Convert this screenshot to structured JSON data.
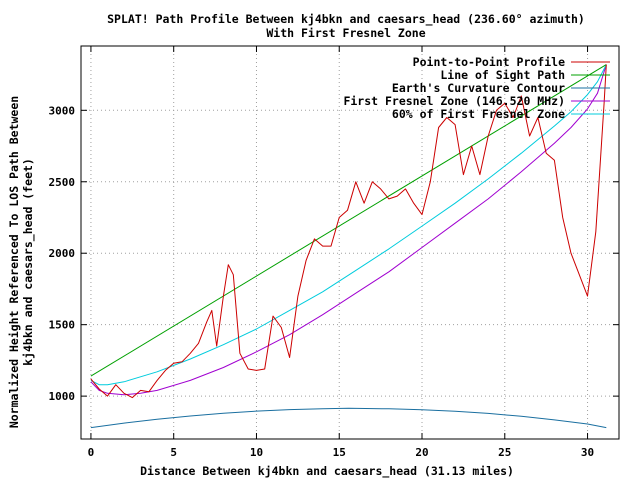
{
  "chart_data": {
    "type": "line",
    "title": "SPLAT! Path Profile Between kj4bkn and caesars_head (236.60° azimuth)",
    "subtitle": "With First Fresnel Zone",
    "xlabel": "Distance Between kj4bkn and caesars_head (31.13 miles)",
    "ylabel_line1": "Normalized Height Referenced To LOS Path Between",
    "ylabel_line2": "kj4bkn and caesars_head (feet)",
    "xlim": [
      -0.6,
      31.9
    ],
    "ylim": [
      700,
      3450
    ],
    "x_ticks": [
      0,
      5,
      10,
      15,
      20,
      25,
      30
    ],
    "y_ticks": [
      1000,
      1500,
      2000,
      2500,
      3000
    ],
    "grid": true,
    "legend_position": "top-right",
    "colors": {
      "profile": "#cc0000",
      "los": "#00a000",
      "curvature": "#1a6fa0",
      "fresnel": "#a000d0",
      "fresnel60": "#00ccdd"
    },
    "series": [
      {
        "name": "Point-to-Point Profile",
        "key": "profile",
        "x": [
          0,
          0.5,
          1,
          1.5,
          2,
          2.5,
          3,
          3.5,
          4,
          4.5,
          5,
          5.5,
          6,
          6.5,
          7,
          7.3,
          7.6,
          8,
          8.3,
          8.6,
          9,
          9.5,
          10,
          10.5,
          11,
          11.5,
          12,
          12.5,
          13,
          13.5,
          14,
          14.5,
          15,
          15.5,
          16,
          16.5,
          17,
          17.5,
          18,
          18.5,
          19,
          19.5,
          20,
          20.5,
          21,
          21.5,
          22,
          22.5,
          23,
          23.5,
          24,
          24.5,
          25,
          25.5,
          26,
          26.5,
          27,
          27.5,
          28,
          28.5,
          29,
          29.5,
          30,
          30.5,
          31,
          31.13
        ],
        "y": [
          1120,
          1050,
          1000,
          1080,
          1020,
          990,
          1040,
          1030,
          1110,
          1180,
          1230,
          1240,
          1300,
          1370,
          1520,
          1600,
          1350,
          1700,
          1920,
          1850,
          1300,
          1190,
          1180,
          1190,
          1560,
          1480,
          1270,
          1700,
          1950,
          2100,
          2050,
          2050,
          2250,
          2300,
          2500,
          2350,
          2500,
          2450,
          2380,
          2400,
          2450,
          2350,
          2270,
          2500,
          2880,
          2950,
          2900,
          2550,
          2750,
          2550,
          2820,
          3000,
          3050,
          2950,
          3100,
          2820,
          2950,
          2700,
          2650,
          2250,
          2000,
          1850,
          1700,
          2150,
          3050,
          3320
        ]
      },
      {
        "name": "Line of Sight Path",
        "key": "los",
        "x": [
          0,
          31.13
        ],
        "y": [
          1140,
          3320
        ]
      },
      {
        "name": "Earth's Curvature Contour",
        "key": "curvature",
        "x": [
          0,
          2,
          4,
          6,
          8,
          10,
          12,
          14,
          15.565,
          18,
          20,
          22,
          24,
          26,
          28,
          30,
          31.13
        ],
        "y": [
          780,
          811,
          838,
          861,
          880,
          895,
          906,
          912,
          915,
          911,
          905,
          894,
          879,
          859,
          834,
          805,
          780
        ]
      },
      {
        "name": "First Fresnel Zone (146.520 MHz)",
        "key": "fresnel",
        "x": [
          0,
          0.5,
          1,
          2,
          3,
          4,
          6,
          8,
          10,
          12,
          14,
          16,
          18,
          20,
          22,
          24,
          26,
          28,
          29,
          30,
          30.6,
          31.13
        ],
        "y": [
          1100,
          1040,
          1020,
          1010,
          1020,
          1040,
          1110,
          1200,
          1310,
          1430,
          1570,
          1720,
          1870,
          2040,
          2210,
          2380,
          2570,
          2770,
          2880,
          3010,
          3120,
          3320
        ]
      },
      {
        "name": "60% of First Fresnel Zone",
        "key": "fresnel60",
        "x": [
          0,
          0.5,
          1,
          2,
          4,
          6,
          8,
          10,
          12,
          14,
          16,
          18,
          20,
          22,
          24,
          26,
          28,
          29,
          30,
          30.6,
          31.13
        ],
        "y": [
          1110,
          1080,
          1080,
          1100,
          1170,
          1260,
          1360,
          1470,
          1600,
          1730,
          1880,
          2030,
          2190,
          2350,
          2520,
          2700,
          2890,
          2990,
          3110,
          3200,
          3320
        ]
      }
    ]
  }
}
